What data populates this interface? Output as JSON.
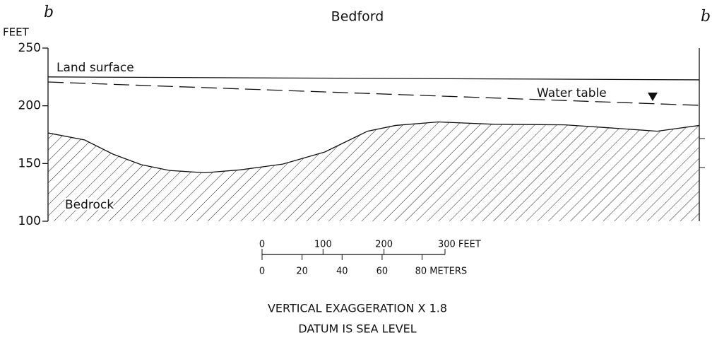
{
  "chart_data": {
    "type": "line",
    "title": "Bedford",
    "left_label": "b",
    "right_label": "b'",
    "y_label": "FEET",
    "xlim": [
      0,
      1068
    ],
    "ylim": [
      100,
      250
    ],
    "yticks": [
      100,
      150,
      200,
      250
    ],
    "series": [
      {
        "name": "Land surface",
        "color": "#111",
        "x": [
          0,
          1068
        ],
        "values": [
          225,
          222.5
        ]
      },
      {
        "name": "Water table",
        "color": "#111",
        "dashed": true,
        "x": [
          0,
          1068
        ],
        "values": [
          220.6,
          200.4
        ]
      },
      {
        "name": "Bedrock",
        "color": "#111",
        "fill": "hatch",
        "x": [
          0,
          60,
          107,
          153,
          199,
          257,
          315,
          385,
          454,
          524,
          570,
          640,
          732,
          848,
          918,
          999,
          1068
        ],
        "values": [
          176.5,
          170.4,
          158,
          149,
          144,
          142,
          144.5,
          149.5,
          160,
          178,
          183,
          186,
          184,
          183.5,
          181,
          178,
          183
        ]
      }
    ],
    "scale_bar": {
      "feet_ticks": [
        0,
        100,
        200,
        {
          "value": 300,
          "label": "300 FEET"
        }
      ],
      "meter_ticks": [
        0,
        20,
        40,
        60,
        {
          "value": 80,
          "label": "80 METERS"
        }
      ]
    },
    "notes": [
      "VERTICAL EXAGGERATION X 1.8",
      "DATUM IS SEA LEVEL"
    ]
  }
}
